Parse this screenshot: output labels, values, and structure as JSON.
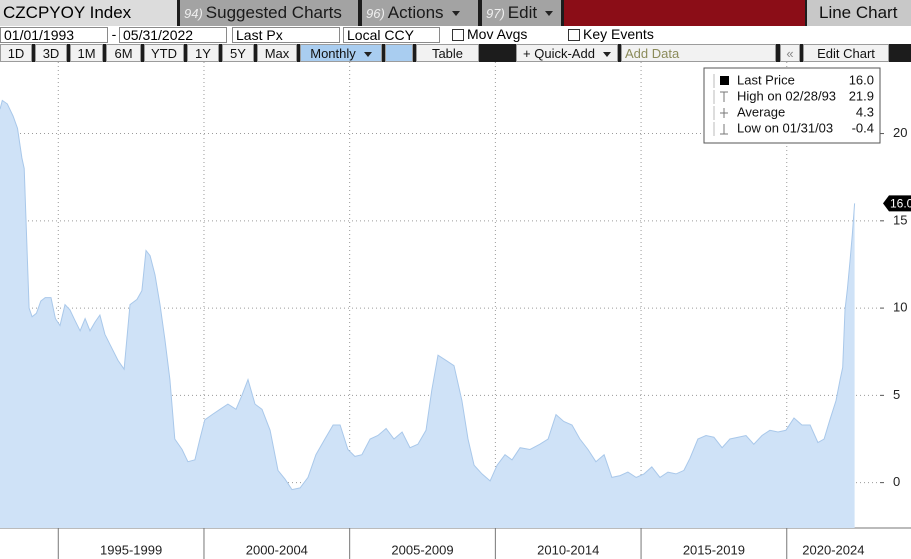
{
  "toolbar": {
    "security": "CZCPYOY Index",
    "menus": [
      {
        "num": "94)",
        "label": "Suggested Charts"
      },
      {
        "num": "96)",
        "label": "Actions"
      },
      {
        "num": "97)",
        "label": "Edit"
      }
    ],
    "chart_type": "Line Chart"
  },
  "controls": {
    "start_date": "01/01/1993",
    "separator": "-",
    "end_date": "05/31/2022",
    "field": "Last Px",
    "currency": "Local CCY",
    "checkboxes": [
      "Mov Avgs",
      "Key Events"
    ],
    "ranges": [
      "1D",
      "3D",
      "1M",
      "6M",
      "YTD",
      "1Y",
      "5Y",
      "Max"
    ],
    "frequency": "Monthly",
    "table": "Table",
    "quick_add": "+ Quick-Add",
    "add_data": "Add Data",
    "edit_chart": "Edit Chart"
  },
  "chart_data": {
    "type": "area",
    "x": [
      1993.0,
      1993.08,
      1993.25,
      1993.45,
      1993.6,
      1993.75,
      1993.83,
      1994.0,
      1994.1,
      1994.25,
      1994.4,
      1994.55,
      1994.75,
      1994.9,
      1995.06,
      1995.23,
      1995.4,
      1995.57,
      1995.75,
      1995.92,
      1996.09,
      1996.26,
      1996.43,
      1996.6,
      1996.78,
      1997.05,
      1997.26,
      1997.46,
      1997.7,
      1997.87,
      1998.01,
      1998.15,
      1998.32,
      1998.49,
      1998.66,
      1998.83,
      1999.0,
      1999.25,
      1999.45,
      1999.69,
      1999.86,
      2000.03,
      2000.28,
      2000.55,
      2000.82,
      2001.1,
      2001.3,
      2001.51,
      2001.75,
      2001.99,
      2002.27,
      2002.54,
      2002.78,
      2003.02,
      2003.3,
      2003.57,
      2003.84,
      2004.15,
      2004.43,
      2004.67,
      2004.94,
      2005.18,
      2005.42,
      2005.7,
      2005.97,
      2006.25,
      2006.52,
      2006.8,
      2007.07,
      2007.34,
      2007.62,
      2007.82,
      2008.03,
      2008.31,
      2008.58,
      2008.85,
      2009.06,
      2009.27,
      2009.54,
      2009.82,
      2010.06,
      2010.33,
      2010.57,
      2010.85,
      2011.19,
      2011.53,
      2011.81,
      2012.08,
      2012.35,
      2012.63,
      2012.9,
      2013.18,
      2013.45,
      2013.73,
      2014.0,
      2014.28,
      2014.55,
      2014.83,
      2015.1,
      2015.37,
      2015.65,
      2015.92,
      2016.2,
      2016.47,
      2016.68,
      2016.95,
      2017.23,
      2017.5,
      2017.78,
      2018.05,
      2018.33,
      2018.6,
      2018.87,
      2019.15,
      2019.42,
      2019.7,
      2019.97,
      2020.25,
      2020.52,
      2020.8,
      2021.07,
      2021.28,
      2021.48,
      2021.69,
      2021.83,
      2021.92,
      2022.0,
      2022.08,
      2022.17,
      2022.25,
      2022.33
    ],
    "series": [
      {
        "color": "#cfe2f7",
        "values": [
          21.4,
          21.9,
          21.7,
          21.0,
          20.3,
          18.6,
          18.0,
          10.0,
          9.5,
          9.7,
          10.4,
          10.6,
          10.6,
          9.4,
          9.0,
          10.2,
          9.9,
          9.3,
          8.7,
          9.4,
          8.7,
          9.2,
          9.6,
          8.5,
          7.9,
          7.0,
          6.5,
          10.2,
          10.5,
          11.0,
          13.3,
          13.0,
          11.9,
          10.2,
          8.2,
          5.9,
          2.5,
          1.9,
          1.2,
          1.3,
          2.5,
          3.6,
          3.9,
          4.2,
          4.5,
          4.2,
          5.0,
          5.9,
          4.5,
          4.2,
          3.0,
          0.7,
          0.2,
          -0.4,
          -0.3,
          0.3,
          1.6,
          2.5,
          3.3,
          3.3,
          1.9,
          1.5,
          1.6,
          2.5,
          2.7,
          3.1,
          2.5,
          2.9,
          2.0,
          2.2,
          3.0,
          5.3,
          7.3,
          7.0,
          6.7,
          4.7,
          2.5,
          1.0,
          0.5,
          0.1,
          1.0,
          1.6,
          1.3,
          2.0,
          1.9,
          2.2,
          2.5,
          3.9,
          3.5,
          3.3,
          2.5,
          1.9,
          1.2,
          1.6,
          0.3,
          0.4,
          0.6,
          0.3,
          0.5,
          0.9,
          0.3,
          0.6,
          0.5,
          0.7,
          1.4,
          2.5,
          2.7,
          2.6,
          2.0,
          2.5,
          2.6,
          2.7,
          2.2,
          2.7,
          3.0,
          2.9,
          3.0,
          3.7,
          3.3,
          3.3,
          2.3,
          2.5,
          3.6,
          4.7,
          5.9,
          6.6,
          9.9,
          11.1,
          12.7,
          14.2,
          16.0
        ]
      }
    ],
    "xlim": [
      1993.0,
      2023.2
    ],
    "xticks": [
      {
        "value": 1995,
        "label": "1995-1999"
      },
      {
        "value": 2000,
        "label": "2000-2004"
      },
      {
        "value": 2005,
        "label": "2005-2009"
      },
      {
        "value": 2010,
        "label": "2010-2014"
      },
      {
        "value": 2015,
        "label": "2015-2019"
      },
      {
        "value": 2020,
        "label": "2020-2024"
      }
    ],
    "ylim": [
      -2.6,
      24.1
    ],
    "yticks": [
      0,
      5,
      10,
      15,
      20
    ],
    "grid": true,
    "legend": {
      "position": "top-right",
      "rows": [
        {
          "label": "Last Price",
          "value": 16.0,
          "value_label": "16.0"
        },
        {
          "label": "High on 02/28/93",
          "value": 21.9
        },
        {
          "label": "Average",
          "value": 4.3
        },
        {
          "label": "Low on 01/31/03",
          "value": -0.4
        }
      ]
    },
    "last_value_label": "16.0"
  }
}
